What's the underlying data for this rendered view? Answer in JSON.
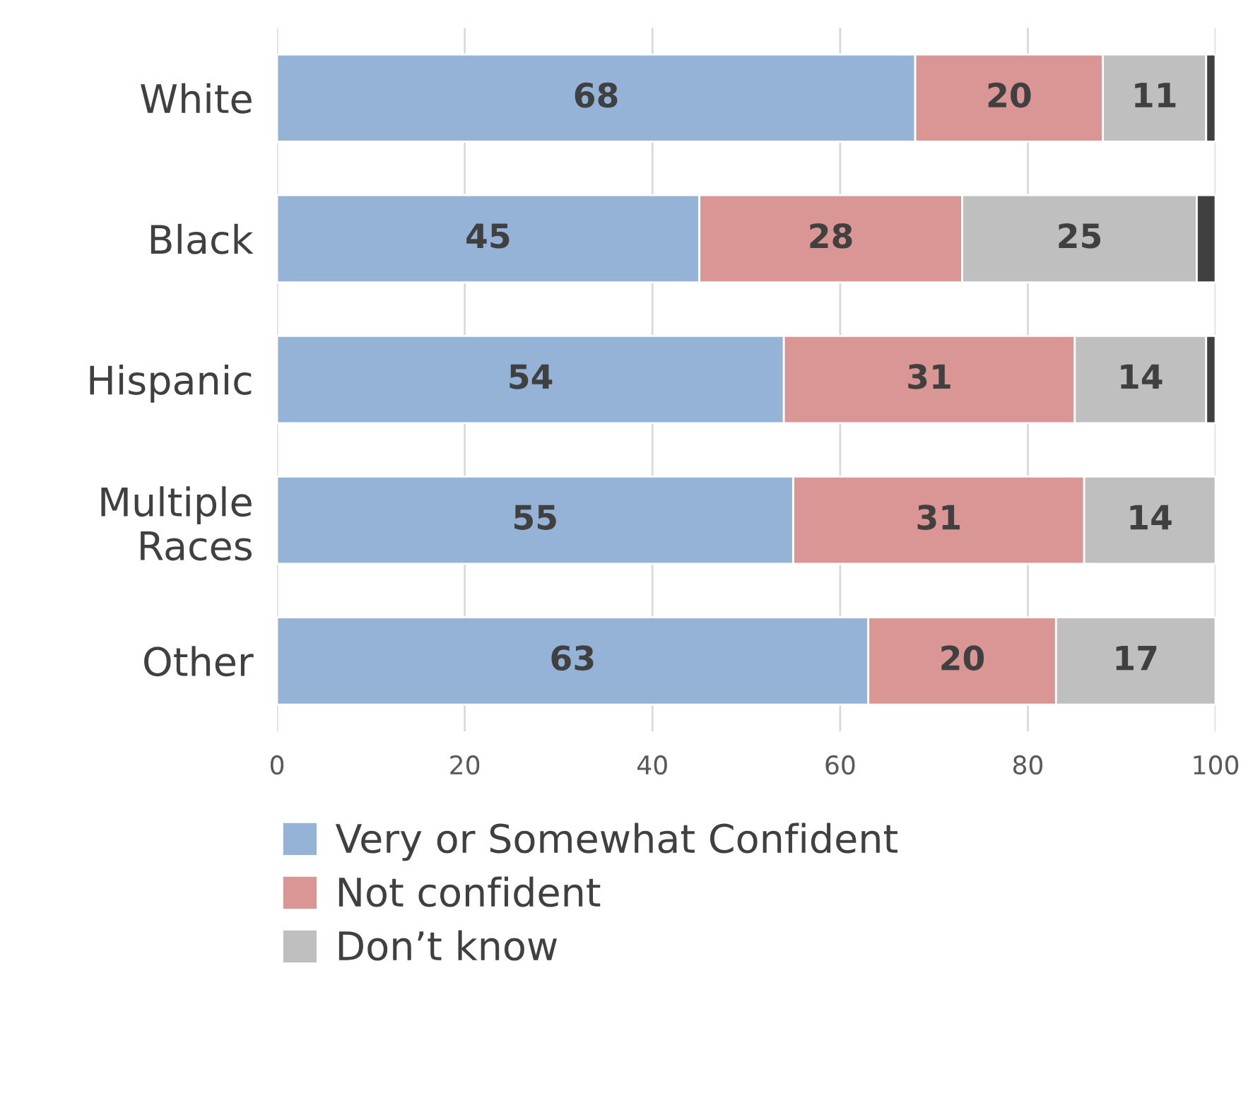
{
  "chart_data": {
    "type": "bar",
    "orientation": "horizontal",
    "stacked": true,
    "categories": [
      "White",
      "Black",
      "Hispanic",
      "Multiple\nRaces",
      "Other"
    ],
    "series": [
      {
        "name": "Very or Somewhat Confident",
        "color": "#95b3d7",
        "values": [
          68,
          45,
          54,
          55,
          63
        ],
        "value_labels": [
          "68",
          "45",
          "54",
          "55",
          "63"
        ]
      },
      {
        "name": "Not confident",
        "color": "#d99694",
        "values": [
          20,
          28,
          31,
          31,
          20
        ],
        "value_labels": [
          "20",
          "28",
          "31",
          "31",
          "20"
        ]
      },
      {
        "name": "Don’t know",
        "color": "#bfbfbf",
        "values": [
          11,
          25,
          14,
          14,
          17
        ],
        "value_labels": [
          "11",
          "25",
          "14",
          "14",
          "17"
        ]
      },
      {
        "color": "#404040",
        "values": [
          1,
          2,
          1,
          null,
          null
        ]
      }
    ],
    "xlim": [
      0,
      100
    ],
    "xticks": [
      0,
      20,
      40,
      60,
      80,
      100
    ],
    "grid": "x",
    "legend": "bottom"
  }
}
